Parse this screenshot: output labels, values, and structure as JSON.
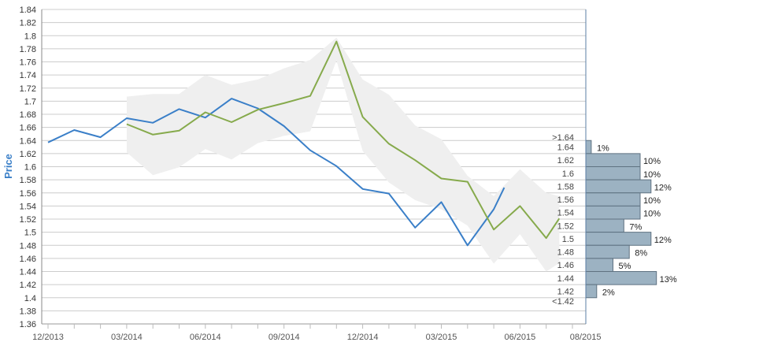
{
  "chart_data": {
    "type": "line",
    "ylabel": "Price",
    "xlabel": "",
    "title": "",
    "ylim": [
      1.36,
      1.84
    ],
    "y_ticks": [
      "1.36",
      "1.38",
      "1.4",
      "1.42",
      "1.44",
      "1.46",
      "1.48",
      "1.5",
      "1.52",
      "1.54",
      "1.56",
      "1.58",
      "1.6",
      "1.62",
      "1.64",
      "1.66",
      "1.68",
      "1.7",
      "1.72",
      "1.74",
      "1.76",
      "1.78",
      "1.8",
      "1.82",
      "1.84"
    ],
    "x_ticks": [
      "12/2013",
      "03/2014",
      "06/2014",
      "09/2014",
      "12/2014",
      "03/2015",
      "06/2015",
      "08/2015"
    ],
    "x_tick_index": [
      0,
      3,
      6,
      9,
      12,
      15,
      18,
      20.5
    ],
    "grid": true,
    "series": [
      {
        "color": "#3a7fc8",
        "x_index": [
          0,
          1,
          2,
          3,
          4,
          5,
          6,
          7,
          8,
          9,
          10,
          11,
          12,
          13,
          14,
          15,
          16,
          17,
          17.4
        ],
        "values": [
          1.637,
          1.656,
          1.645,
          1.674,
          1.667,
          1.688,
          1.675,
          1.704,
          1.689,
          1.662,
          1.625,
          1.601,
          1.566,
          1.559,
          1.507,
          1.546,
          1.48,
          1.535,
          1.568
        ]
      },
      {
        "color": "#86aa4c",
        "x_index": [
          3,
          4,
          5,
          6,
          7,
          8,
          9,
          10,
          11,
          12,
          13,
          14,
          15,
          16,
          17,
          18,
          19,
          19.5
        ],
        "values": [
          1.665,
          1.649,
          1.655,
          1.683,
          1.668,
          1.687,
          1.697,
          1.708,
          1.791,
          1.676,
          1.635,
          1.61,
          1.582,
          1.577,
          1.504,
          1.54,
          1.491,
          1.521
        ]
      }
    ],
    "band": {
      "color": "#efefef",
      "x_index": [
        3,
        4,
        5,
        6,
        7,
        8,
        9,
        10,
        11,
        12,
        13,
        14,
        15,
        16,
        17,
        18,
        19,
        19.5
      ],
      "upper": [
        1.707,
        1.711,
        1.711,
        1.74,
        1.725,
        1.733,
        1.75,
        1.763,
        1.797,
        1.733,
        1.71,
        1.663,
        1.642,
        1.586,
        1.555,
        1.596,
        1.56,
        1.555
      ],
      "lower": [
        1.622,
        1.587,
        1.599,
        1.627,
        1.611,
        1.636,
        1.647,
        1.654,
        1.762,
        1.624,
        1.576,
        1.549,
        1.535,
        1.51,
        1.452,
        1.497,
        1.44,
        1.453
      ]
    },
    "histogram": {
      "color": "#9cb2c2",
      "border": "#5f7281",
      "bins": [
        {
          "label": ">1.64",
          "y": 1.645,
          "value": 0,
          "pct": ""
        },
        {
          "label": "1.64",
          "y": 1.63,
          "value": 1,
          "pct": "1%"
        },
        {
          "label": "1.62",
          "y": 1.61,
          "value": 10,
          "pct": "10%"
        },
        {
          "label": "1.6",
          "y": 1.59,
          "value": 10,
          "pct": "10%"
        },
        {
          "label": "1.58",
          "y": 1.57,
          "value": 12,
          "pct": "12%"
        },
        {
          "label": "1.56",
          "y": 1.55,
          "value": 10,
          "pct": "10%"
        },
        {
          "label": "1.54",
          "y": 1.53,
          "value": 10,
          "pct": "10%"
        },
        {
          "label": "1.52",
          "y": 1.51,
          "value": 7,
          "pct": "7%"
        },
        {
          "label": "1.5",
          "y": 1.49,
          "value": 12,
          "pct": "12%"
        },
        {
          "label": "1.48",
          "y": 1.47,
          "value": 8,
          "pct": "8%"
        },
        {
          "label": "1.46",
          "y": 1.45,
          "value": 5,
          "pct": "5%"
        },
        {
          "label": "1.44",
          "y": 1.43,
          "value": 13,
          "pct": "13%"
        },
        {
          "label": "1.42",
          "y": 1.41,
          "value": 2,
          "pct": "2%"
        },
        {
          "label": "<1.42",
          "y": 1.395,
          "value": 0,
          "pct": ""
        }
      ]
    }
  }
}
